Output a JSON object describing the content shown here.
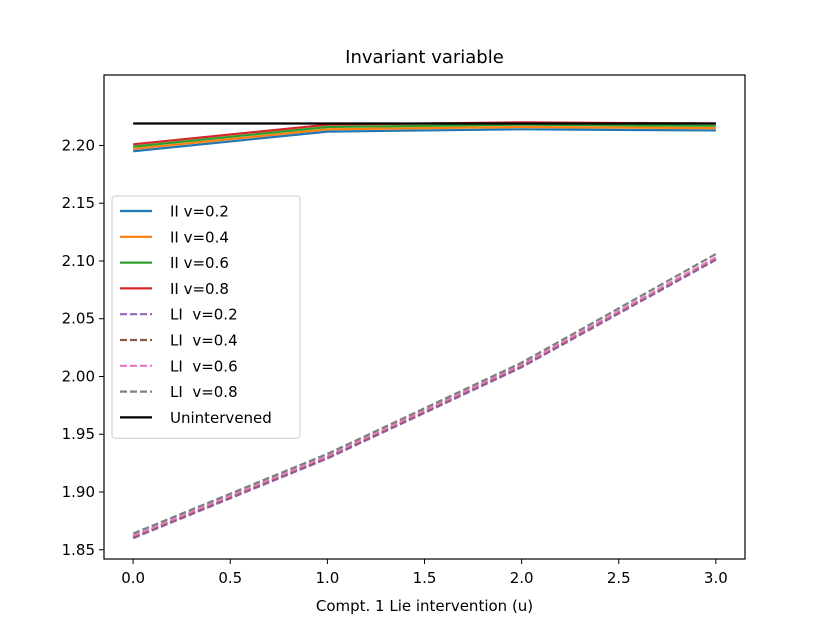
{
  "chart_data": {
    "type": "line",
    "title": "Invariant variable",
    "xlabel": "Compt. 1 Lie intervention (u)",
    "ylabel": "",
    "xlim": [
      -0.15,
      3.15
    ],
    "ylim": [
      1.842,
      2.261
    ],
    "xticks": [
      0.0,
      0.5,
      1.0,
      1.5,
      2.0,
      2.5,
      3.0
    ],
    "xtick_labels": [
      "0.0",
      "0.5",
      "1.0",
      "1.5",
      "2.0",
      "2.5",
      "3.0"
    ],
    "yticks": [
      1.85,
      1.9,
      1.95,
      2.0,
      2.05,
      2.1,
      2.15,
      2.2
    ],
    "ytick_labels": [
      "1.85",
      "1.90",
      "1.95",
      "2.00",
      "2.05",
      "2.10",
      "2.15",
      "2.20"
    ],
    "grid": false,
    "legend_position": "center-left",
    "x": [
      0,
      1,
      2,
      3
    ],
    "series": [
      {
        "name": "II v=0.2",
        "color": "#1f77b4",
        "dash": "solid",
        "values": [
          2.195,
          2.212,
          2.214,
          2.213
        ]
      },
      {
        "name": "II v=0.4",
        "color": "#ff7f0e",
        "dash": "solid",
        "values": [
          2.197,
          2.214,
          2.216,
          2.215
        ]
      },
      {
        "name": "II v=0.6",
        "color": "#2ca02c",
        "dash": "solid",
        "values": [
          2.199,
          2.216,
          2.218,
          2.217
        ]
      },
      {
        "name": "II v=0.8",
        "color": "#d62728",
        "dash": "solid",
        "values": [
          2.201,
          2.218,
          2.22,
          2.219
        ]
      },
      {
        "name": "LI  v=0.2",
        "color": "#9467bd",
        "dash": "dashed",
        "values": [
          1.86,
          1.929,
          2.008,
          2.101
        ]
      },
      {
        "name": "LI  v=0.4",
        "color": "#8c564b",
        "dash": "dashed",
        "values": [
          1.861,
          1.93,
          2.009,
          2.102
        ]
      },
      {
        "name": "LI  v=0.6",
        "color": "#e377c2",
        "dash": "dashed",
        "values": [
          1.862,
          1.931,
          2.01,
          2.103
        ]
      },
      {
        "name": "LI  v=0.8",
        "color": "#7f7f7f",
        "dash": "dashed",
        "values": [
          1.864,
          1.933,
          2.012,
          2.106
        ]
      },
      {
        "name": "Unintervened",
        "color": "#000000",
        "dash": "solid",
        "values": [
          2.219,
          2.219,
          2.219,
          2.219
        ]
      }
    ]
  }
}
